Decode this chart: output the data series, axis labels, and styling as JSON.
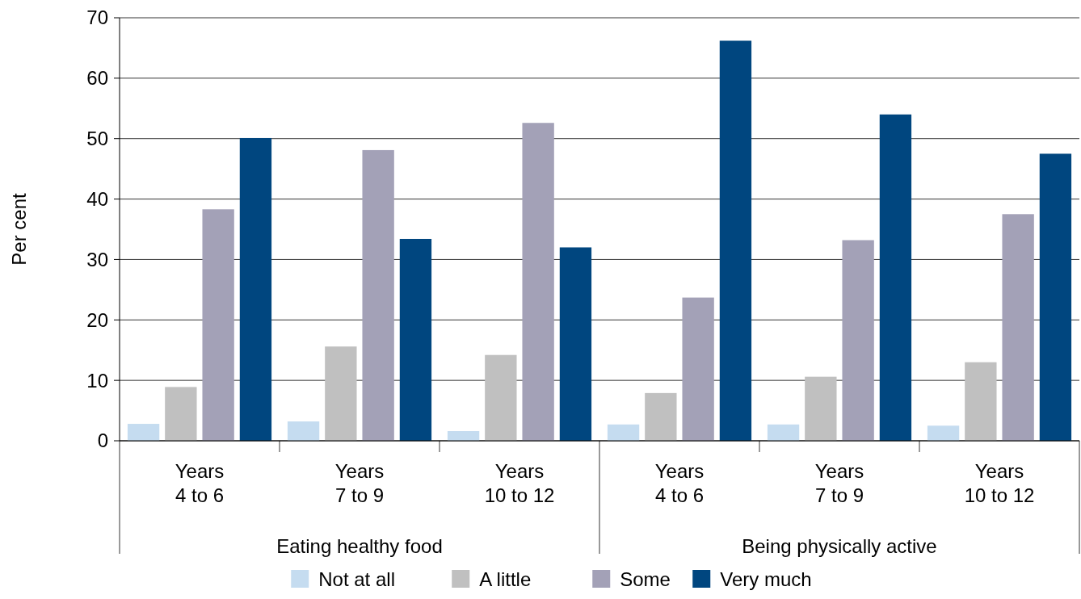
{
  "chart_data": {
    "type": "bar",
    "ylabel": "Per cent",
    "categories": [
      "Years 4 to 6",
      "Years 7 to 9",
      "Years 10 to 12",
      "Years 4 to 6",
      "Years 7 to 9",
      "Years 10 to 12"
    ],
    "series": [
      {
        "name": "Not at all",
        "color": "#c5dcf0",
        "values": [
          2.8,
          3.2,
          1.6,
          2.7,
          2.7,
          2.5
        ]
      },
      {
        "name": "A little",
        "color": "#c0c0c0",
        "values": [
          8.9,
          15.6,
          14.2,
          7.9,
          10.6,
          13.0
        ]
      },
      {
        "name": "Some",
        "color": "#a3a1b7",
        "values": [
          38.3,
          48.1,
          52.6,
          23.7,
          33.2,
          37.5
        ]
      },
      {
        "name": "Very much",
        "color": "#00467f",
        "values": [
          50.1,
          33.4,
          32.0,
          66.2,
          54.0,
          47.5
        ]
      }
    ],
    "annotations": [
      "Eating healthy food",
      "Being physically active"
    ],
    "ylim": [
      0,
      70
    ],
    "yticks": [
      0,
      10,
      20,
      30,
      40,
      50,
      60,
      70
    ],
    "grid": "y",
    "legend": "bottom"
  }
}
